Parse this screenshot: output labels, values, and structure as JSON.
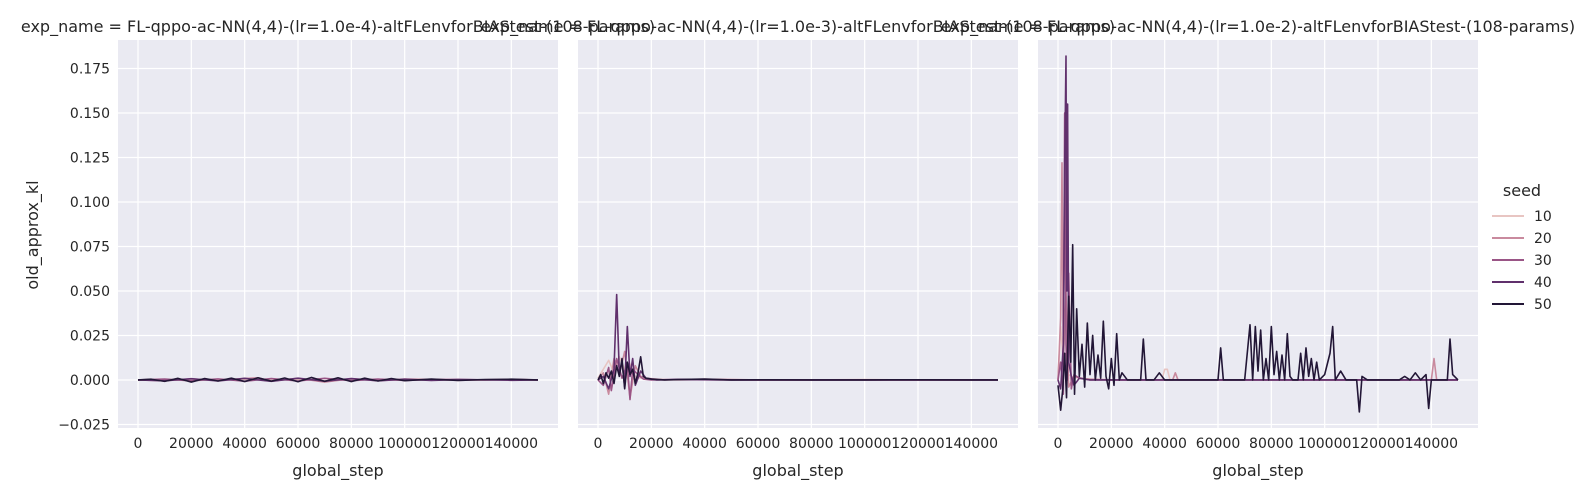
{
  "chart_data": {
    "type": "line",
    "xlabel": "global_step",
    "ylabel": "old_approx_kl",
    "xlim": [
      -7500,
      157500
    ],
    "ylim": [
      -0.027,
      0.191
    ],
    "xticks": [
      0,
      20000,
      40000,
      60000,
      80000,
      100000,
      120000,
      140000
    ],
    "xtick_labels": [
      "0",
      "20000",
      "40000",
      "60000",
      "80000",
      "100000",
      "120000",
      "140000"
    ],
    "yticks": [
      -0.025,
      0.0,
      0.025,
      0.05,
      0.075,
      0.1,
      0.125,
      0.15,
      0.175
    ],
    "ytick_labels": [
      "−0.025",
      "0.000",
      "0.025",
      "0.050",
      "0.075",
      "0.100",
      "0.125",
      "0.150",
      "0.175"
    ],
    "grid": true,
    "legend": {
      "title": "seed",
      "placement": "right",
      "entries": [
        {
          "label": "10",
          "color": "#e8c5c2"
        },
        {
          "label": "20",
          "color": "#c98a9e"
        },
        {
          "label": "30",
          "color": "#9a5586"
        },
        {
          "label": "40",
          "color": "#60306c"
        },
        {
          "label": "50",
          "color": "#221636"
        }
      ]
    },
    "panels": [
      {
        "title": "exp_name = FL-qppo-ac-NN(4,4)-(lr=1.0e-4)-altFLenvforBIAStest-(108-params)",
        "series": [
          {
            "name": "10",
            "color": "#e8c5c2",
            "x": [
              0,
              10000,
              20000,
              30000,
              40000,
              50000,
              60000,
              70000,
              80000,
              90000,
              100000,
              110000,
              120000,
              130000,
              140000,
              150000
            ],
            "y": [
              0.0,
              0.0003,
              -0.0004,
              0.0002,
              0.0005,
              -0.0003,
              0.0004,
              -0.0005,
              0.0003,
              0.0002,
              -0.0002,
              0.0003,
              0.0001,
              0.0,
              0.0002,
              0.0
            ]
          },
          {
            "name": "20",
            "color": "#c98a9e",
            "x": [
              0,
              10000,
              20000,
              30000,
              40000,
              45000,
              50000,
              60000,
              70000,
              80000,
              90000,
              100000,
              110000,
              120000,
              130000,
              140000,
              150000
            ],
            "y": [
              0.0,
              -0.0004,
              0.0006,
              -0.0003,
              0.0008,
              0.0012,
              -0.0006,
              0.0009,
              -0.0012,
              0.0007,
              -0.0004,
              0.0005,
              0.0003,
              -0.0002,
              0.0001,
              0.0003,
              0.0
            ]
          },
          {
            "name": "30",
            "color": "#9a5586",
            "x": [
              0,
              10000,
              20000,
              30000,
              40000,
              50000,
              60000,
              70000,
              80000,
              90000,
              100000,
              110000,
              120000,
              130000,
              140000,
              150000
            ],
            "y": [
              0.0,
              0.0005,
              -0.0005,
              0.0006,
              -0.0007,
              0.0008,
              -0.0006,
              0.0009,
              -0.0004,
              0.0005,
              -0.0003,
              0.0002,
              0.0003,
              0.0,
              0.0002,
              0.0
            ]
          },
          {
            "name": "40",
            "color": "#60306c",
            "x": [
              0,
              10000,
              20000,
              30000,
              40000,
              50000,
              60000,
              70000,
              80000,
              90000,
              100000,
              110000,
              120000,
              130000,
              140000,
              150000
            ],
            "y": [
              0.0,
              -0.0005,
              0.0007,
              -0.0006,
              0.0009,
              -0.0008,
              0.001,
              -0.0007,
              0.0008,
              -0.0005,
              0.0004,
              -0.0003,
              0.0002,
              0.0001,
              -0.0002,
              0.0
            ]
          },
          {
            "name": "50",
            "color": "#221636",
            "x": [
              0,
              5000,
              10000,
              15000,
              20000,
              25000,
              30000,
              35000,
              40000,
              45000,
              50000,
              55000,
              60000,
              65000,
              70000,
              75000,
              80000,
              85000,
              90000,
              95000,
              100000,
              110000,
              120000,
              130000,
              140000,
              150000
            ],
            "y": [
              0.0,
              0.0004,
              -0.0008,
              0.0009,
              -0.0012,
              0.0008,
              -0.0006,
              0.001,
              -0.0009,
              0.0012,
              -0.0007,
              0.0011,
              -0.001,
              0.0014,
              -0.0008,
              0.0012,
              -0.0009,
              0.001,
              -0.0006,
              0.0008,
              -0.0004,
              0.0005,
              -0.0003,
              0.0002,
              0.0004,
              0.0
            ]
          }
        ]
      },
      {
        "title": "exp_name = FL-qppo-ac-NN(4,4)-(lr=1.0e-3)-altFLenvforBIAStest-(108-params)",
        "series": [
          {
            "name": "10",
            "color": "#e8c5c2",
            "x": [
              0,
              2000,
              4000,
              6000,
              8000,
              10000,
              12000,
              14000,
              16000,
              20000,
              30000,
              40000,
              60000,
              80000,
              100000,
              120000,
              150000
            ],
            "y": [
              0.001,
              0.006,
              0.011,
              0.004,
              0.013,
              0.006,
              0.009,
              0.002,
              0.001,
              0.0005,
              0.0,
              0.0003,
              0.0,
              0.0,
              0.0002,
              0.0,
              0.0
            ]
          },
          {
            "name": "20",
            "color": "#c98a9e",
            "x": [
              0,
              2000,
              4000,
              6000,
              8000,
              10000,
              12000,
              14000,
              16000,
              18000,
              25000,
              40000,
              60000,
              80000,
              100000,
              150000
            ],
            "y": [
              0.0,
              0.004,
              -0.008,
              0.012,
              0.003,
              0.016,
              -0.01,
              0.008,
              0.002,
              0.001,
              0.0,
              0.0004,
              0.0,
              0.0,
              0.0,
              0.0
            ]
          },
          {
            "name": "30",
            "color": "#9a5586",
            "x": [
              0,
              2000,
              4000,
              5000,
              7000,
              9000,
              11000,
              12000,
              13000,
              15000,
              17000,
              20000,
              30000,
              50000,
              80000,
              110000,
              150000
            ],
            "y": [
              0.0,
              -0.003,
              0.007,
              -0.006,
              0.012,
              0.001,
              0.009,
              -0.011,
              0.006,
              0.003,
              0.0005,
              0.0,
              0.0002,
              0.0,
              0.0,
              0.0,
              0.0
            ]
          },
          {
            "name": "40",
            "color": "#60306c",
            "x": [
              0,
              2000,
              4000,
              6000,
              7000,
              8000,
              9000,
              10000,
              11000,
              12000,
              13000,
              14000,
              16000,
              18000,
              22000,
              30000,
              50000,
              80000,
              110000,
              150000
            ],
            "y": [
              0.0,
              0.002,
              -0.005,
              0.006,
              0.048,
              0.004,
              0.01,
              -0.004,
              0.03,
              0.002,
              0.012,
              -0.003,
              0.005,
              0.001,
              0.0,
              0.0003,
              0.0,
              0.0,
              0.0,
              0.0
            ]
          },
          {
            "name": "50",
            "color": "#221636",
            "x": [
              0,
              1000,
              2000,
              3000,
              4000,
              5000,
              6000,
              7000,
              8000,
              9000,
              10000,
              11000,
              12000,
              13000,
              14000,
              15000,
              16000,
              17000,
              18000,
              20000,
              25000,
              30000,
              40000,
              50000,
              60000,
              80000,
              100000,
              120000,
              140000,
              150000
            ],
            "y": [
              0.0,
              0.003,
              -0.002,
              0.004,
              0.001,
              0.005,
              -0.002,
              0.008,
              0.002,
              0.012,
              -0.005,
              0.01,
              0.003,
              0.006,
              -0.002,
              0.004,
              0.013,
              0.002,
              0.001,
              0.0005,
              0.0,
              0.0002,
              0.0005,
              0.0,
              0.0001,
              0.0,
              0.0,
              0.0001,
              0.0,
              0.0
            ]
          }
        ]
      },
      {
        "title": "exp_name = FL-qppo-ac-NN(4,4)-(lr=1.0e-2)-altFLenvforBIAStest-(108-params)",
        "series": [
          {
            "name": "10",
            "color": "#e8c5c2",
            "x": [
              0,
              1000,
              2000,
              3000,
              5000,
              8000,
              12000,
              20000,
              30000,
              39000,
              40000,
              41000,
              42000,
              50000,
              60000,
              80000,
              100000,
              120000,
              140000,
              150000
            ],
            "y": [
              0.0,
              0.03,
              0.01,
              0.004,
              0.002,
              0.001,
              0.0005,
              0.0,
              0.0,
              0.0,
              0.006,
              0.006,
              0.0,
              0.0,
              0.0,
              0.0,
              0.0,
              0.0,
              0.0,
              0.0
            ]
          },
          {
            "name": "20",
            "color": "#c98a9e",
            "x": [
              0,
              1000,
              1500,
              2000,
              3000,
              4000,
              6000,
              10000,
              20000,
              30000,
              43000,
              44000,
              45000,
              60000,
              90000,
              120000,
              140000,
              141000,
              142000,
              145000,
              150000
            ],
            "y": [
              0.0,
              0.035,
              0.122,
              0.01,
              0.05,
              -0.004,
              0.002,
              0.0005,
              0.0,
              0.0,
              0.0,
              0.004,
              0.0,
              0.0,
              0.0,
              0.0,
              0.0,
              0.012,
              0.0,
              0.0,
              0.0
            ]
          },
          {
            "name": "30",
            "color": "#9a5586",
            "x": [
              0,
              1000,
              2000,
              2500,
              3000,
              3500,
              4000,
              5000,
              6000,
              8000,
              12000,
              20000,
              40000,
              80000,
              120000,
              150000
            ],
            "y": [
              0.0,
              0.01,
              -0.008,
              0.15,
              0.02,
              0.0,
              0.06,
              -0.005,
              0.003,
              0.001,
              0.0,
              0.0,
              0.0,
              0.0,
              0.0,
              0.0
            ]
          },
          {
            "name": "40",
            "color": "#60306c",
            "x": [
              0,
              1000,
              2000,
              2500,
              3000,
              3300,
              3600,
              4000,
              5000,
              6000,
              8000,
              12000,
              20000,
              40000,
              80000,
              120000,
              150000
            ],
            "y": [
              0.0,
              -0.005,
              0.02,
              0.12,
              0.182,
              0.05,
              0.155,
              0.01,
              0.002,
              -0.003,
              0.001,
              0.0,
              0.0,
              0.0,
              0.0,
              0.0,
              0.0
            ]
          },
          {
            "name": "50",
            "color": "#221636",
            "x": [
              0,
              1000,
              1800,
              2500,
              3200,
              4000,
              4800,
              5500,
              6200,
              7000,
              8000,
              9000,
              10000,
              11000,
              12000,
              13000,
              14000,
              15000,
              16000,
              17000,
              18000,
              19000,
              20000,
              21000,
              22000,
              23000,
              24000,
              26000,
              28000,
              31000,
              32000,
              33000,
              36000,
              38000,
              40000,
              60000,
              61000,
              62000,
              70000,
              72000,
              73000,
              74000,
              75000,
              76000,
              77000,
              78000,
              79000,
              80000,
              81000,
              82000,
              83000,
              84000,
              85000,
              86000,
              87000,
              88000,
              90000,
              91000,
              92000,
              93000,
              94000,
              95000,
              96000,
              97000,
              98000,
              100000,
              102000,
              103000,
              104000,
              106000,
              108000,
              110000,
              112000,
              113000,
              114000,
              116000,
              120000,
              124000,
              128000,
              130000,
              132000,
              134000,
              136000,
              138000,
              139000,
              140000,
              142000,
              144000,
              146000,
              147000,
              148000,
              150000
            ],
            "y": [
              -0.003,
              -0.017,
              -0.005,
              0.015,
              -0.01,
              0.047,
              0.01,
              0.076,
              -0.008,
              0.04,
              0.002,
              0.02,
              -0.004,
              0.032,
              0.003,
              0.025,
              0.0,
              0.014,
              0.001,
              0.033,
              0.002,
              -0.005,
              0.012,
              -0.003,
              0.026,
              0.0,
              0.004,
              0.0,
              0.0,
              0.0,
              0.023,
              0.0,
              0.0,
              0.004,
              0.0,
              0.0,
              0.018,
              0.0,
              0.0,
              0.031,
              0.0,
              0.03,
              0.005,
              0.028,
              0.0,
              0.012,
              0.0,
              0.03,
              0.003,
              0.016,
              0.0,
              0.014,
              0.0,
              0.026,
              0.002,
              0.0,
              0.0,
              0.015,
              0.0,
              0.018,
              0.002,
              0.012,
              0.0,
              0.01,
              0.0,
              0.003,
              0.015,
              0.03,
              0.0,
              0.005,
              0.0,
              0.0,
              0.0,
              -0.018,
              0.002,
              0.0,
              0.0,
              0.0,
              0.0,
              0.002,
              0.0,
              0.004,
              0.0,
              0.003,
              -0.016,
              0.0,
              0.0,
              0.0,
              0.0,
              0.023,
              0.003,
              0.0
            ]
          }
        ]
      }
    ]
  }
}
